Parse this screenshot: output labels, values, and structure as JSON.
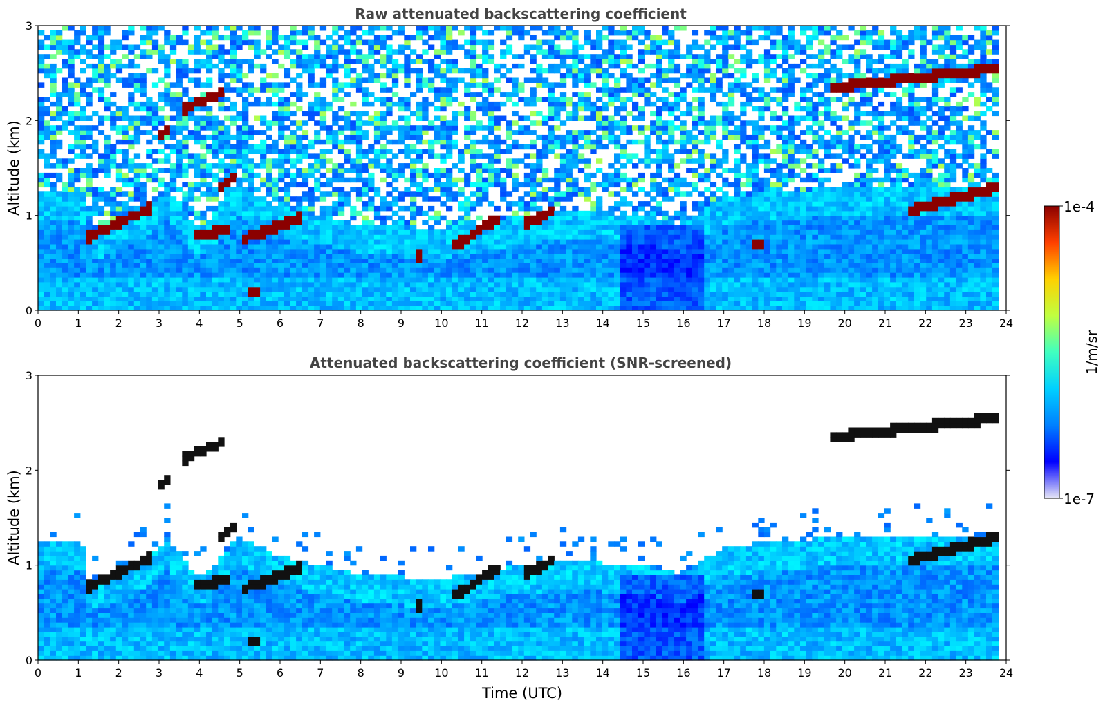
{
  "chart_data": [
    {
      "type": "heatmap",
      "title": "Raw attenuated backscattering coefficient",
      "xlabel": "",
      "ylabel": "Altitude (km)",
      "xlim": [
        0,
        24
      ],
      "ylim": [
        0,
        3
      ],
      "xticks": [
        "0",
        "1",
        "2",
        "3",
        "4",
        "5",
        "6",
        "7",
        "8",
        "9",
        "10",
        "11",
        "12",
        "13",
        "14",
        "15",
        "16",
        "17",
        "18",
        "19",
        "20",
        "21",
        "22",
        "23",
        "24"
      ],
      "yticks": [
        "0",
        "1",
        "2",
        "3"
      ],
      "screened": false,
      "colormap": "jet",
      "data_end_hour": 23.8,
      "cloud_layers": [
        {
          "x": [
            1.15,
            2.9
          ],
          "y": [
            0.75,
            1.1
          ]
        },
        {
          "x": [
            2.95,
            3.2
          ],
          "y": [
            1.8,
            1.9
          ]
        },
        {
          "x": [
            3.5,
            4.6
          ],
          "y": [
            2.1,
            2.3
          ]
        },
        {
          "x": [
            3.9,
            4.7
          ],
          "y": [
            0.78,
            0.85
          ]
        },
        {
          "x": [
            4.4,
            4.9
          ],
          "y": [
            1.25,
            1.4
          ]
        },
        {
          "x": [
            5.1,
            6.6
          ],
          "y": [
            0.75,
            1.0
          ]
        },
        {
          "x": [
            5.2,
            5.5
          ],
          "y": [
            0.2,
            0.22
          ]
        },
        {
          "x": [
            9.35,
            9.55
          ],
          "y": [
            0.55,
            0.6
          ]
        },
        {
          "x": [
            10.2,
            11.5
          ],
          "y": [
            0.65,
            1.0
          ]
        },
        {
          "x": [
            12.0,
            12.8
          ],
          "y": [
            0.9,
            1.05
          ]
        },
        {
          "x": [
            17.75,
            17.95
          ],
          "y": [
            0.7,
            0.72
          ]
        },
        {
          "x": [
            19.6,
            23.8
          ],
          "y": [
            2.35,
            2.55
          ]
        },
        {
          "x": [
            21.6,
            23.8
          ],
          "y": [
            1.05,
            1.3
          ]
        }
      ]
    },
    {
      "type": "heatmap",
      "title": "Attenuated backscattering coefficient (SNR-screened)",
      "xlabel": "Time (UTC)",
      "ylabel": "Altitude (km)",
      "xlim": [
        0,
        24
      ],
      "ylim": [
        0,
        3
      ],
      "xticks": [
        "0",
        "1",
        "2",
        "3",
        "4",
        "5",
        "6",
        "7",
        "8",
        "9",
        "10",
        "11",
        "12",
        "13",
        "14",
        "15",
        "16",
        "17",
        "18",
        "19",
        "20",
        "21",
        "22",
        "23",
        "24"
      ],
      "yticks": [
        "0",
        "1",
        "2",
        "3"
      ],
      "screened": true,
      "colormap": "jet",
      "data_end_hour": 23.8
    }
  ],
  "colorbar": {
    "label": "1/m/sr",
    "max_label": "1e-4",
    "min_label": "1e-7",
    "colors": [
      "#e6e6f5",
      "#0000ff",
      "#0080ff",
      "#00d0ff",
      "#40ffc0",
      "#c0ff40",
      "#ffd000",
      "#ff4000",
      "#8b0000"
    ]
  }
}
